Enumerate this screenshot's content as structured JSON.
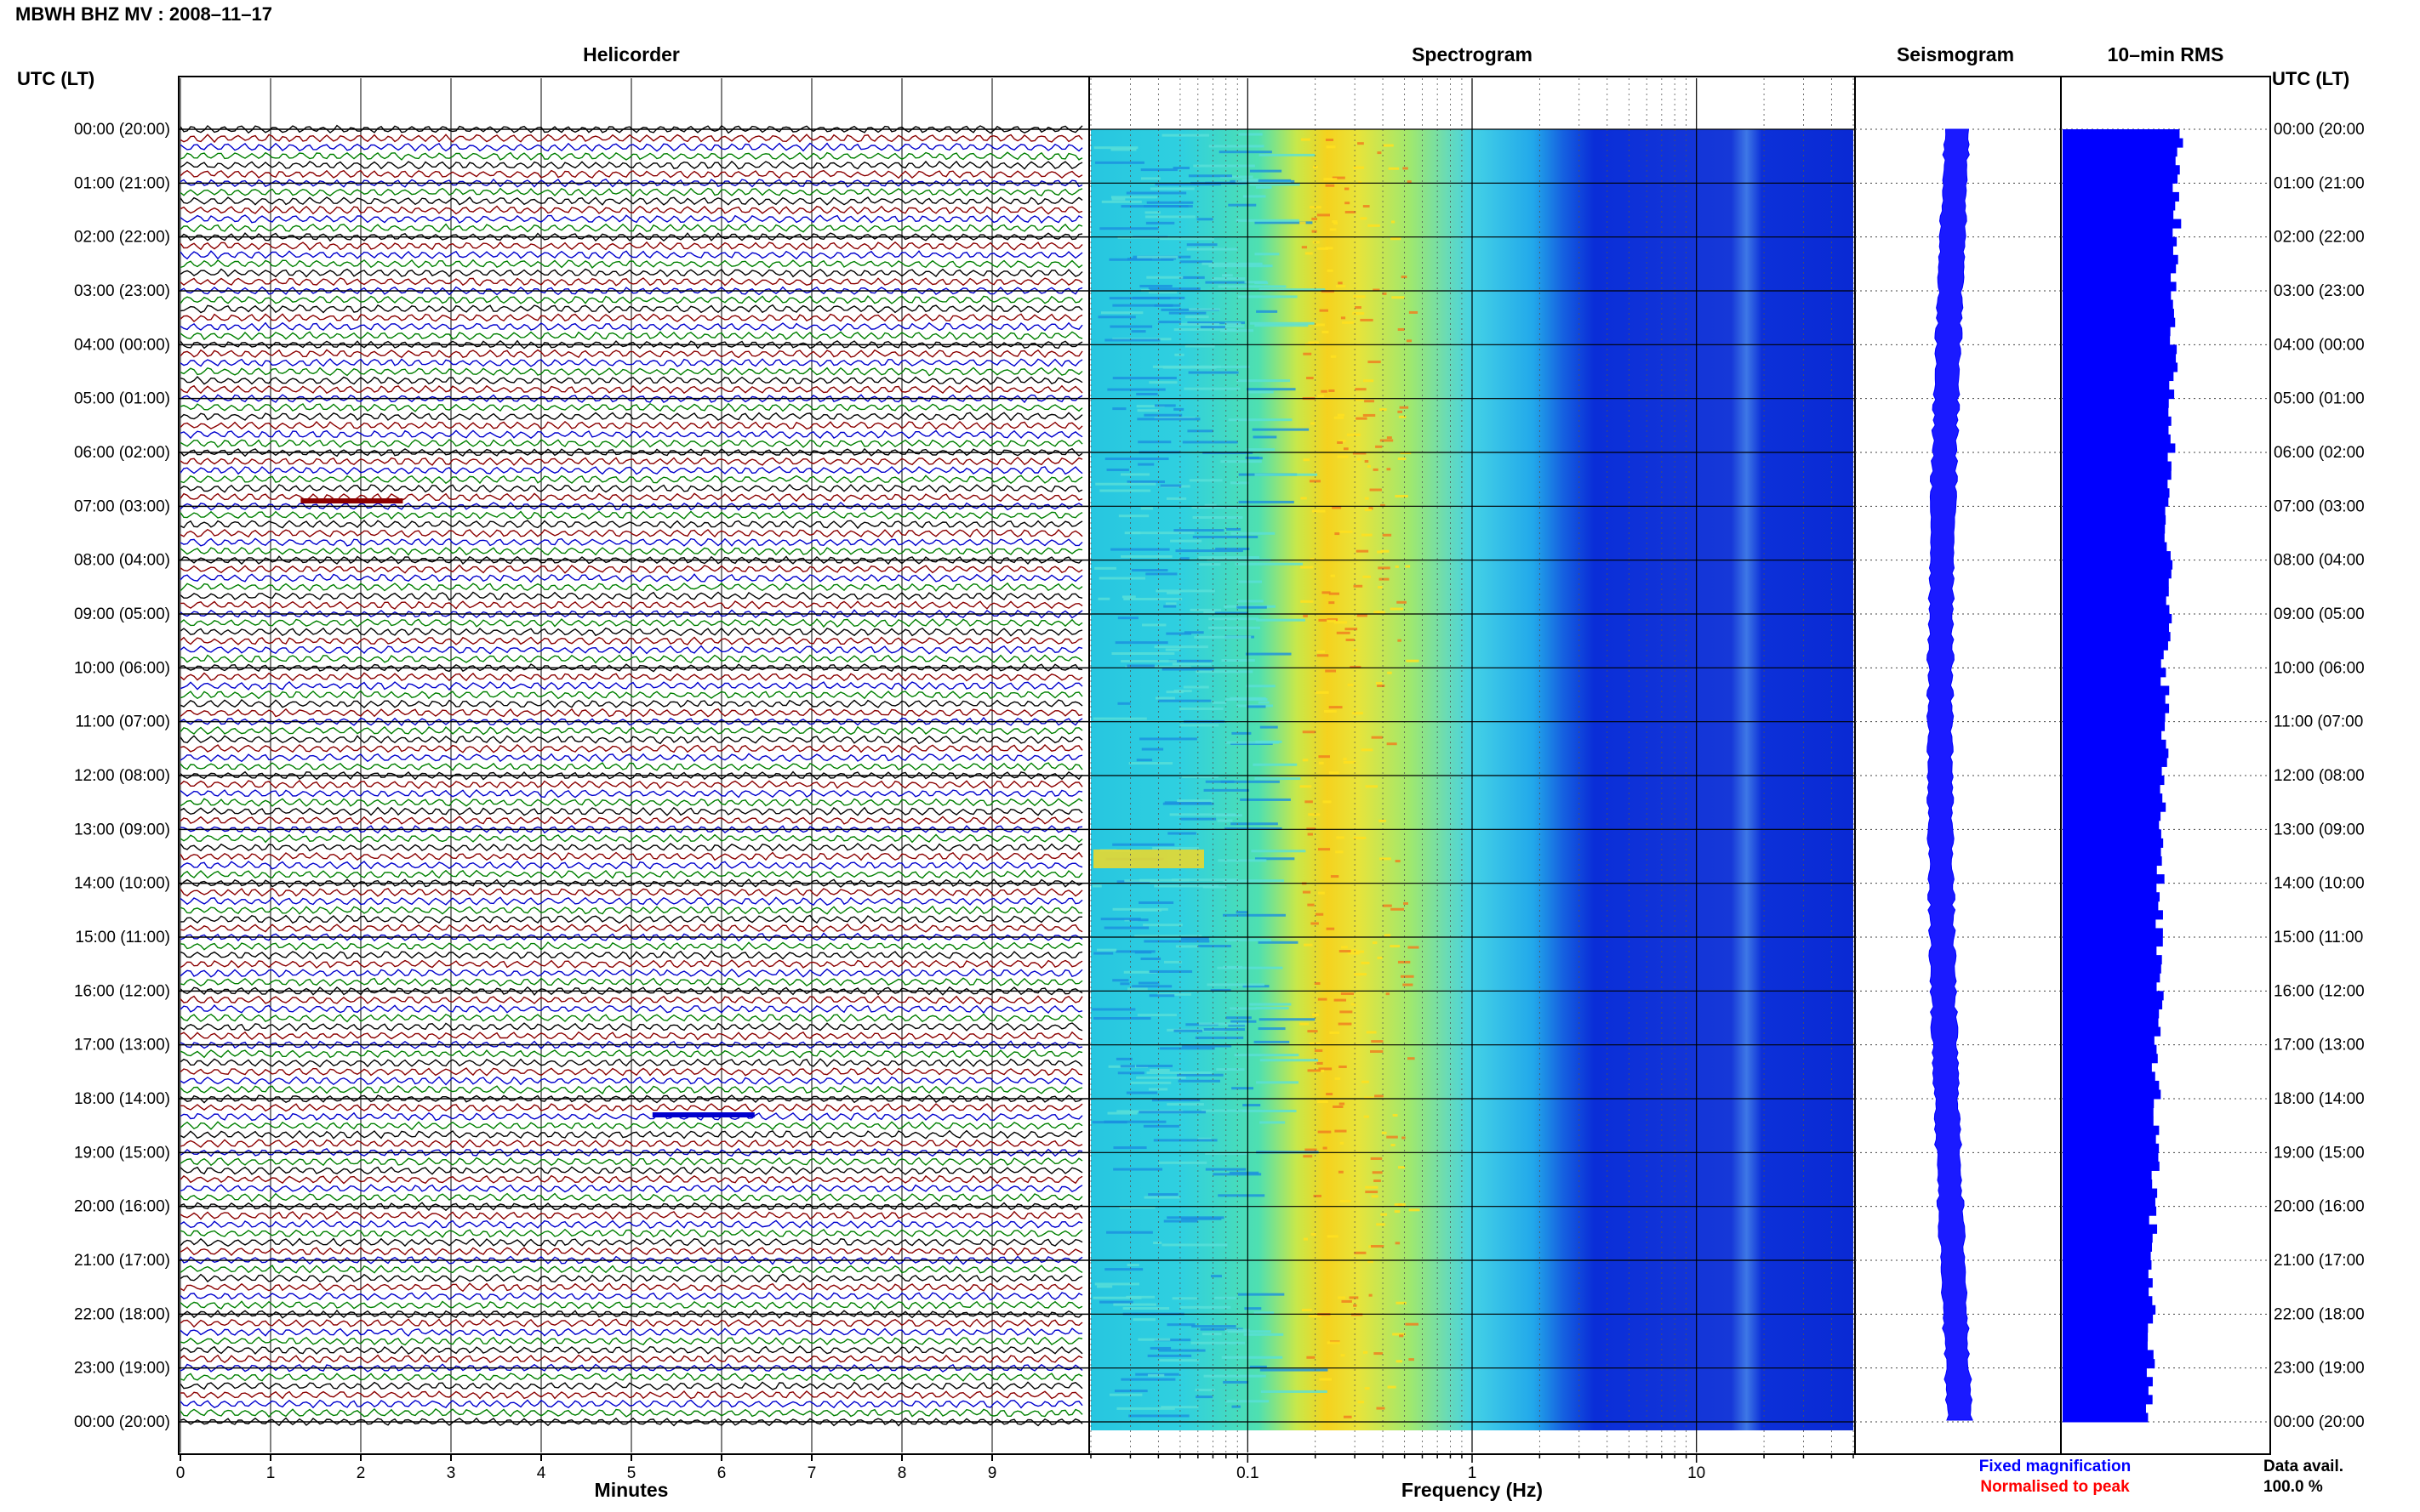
{
  "header": {
    "title": "MBWH BHZ MV : 2008–11–17",
    "utc_label": "UTC (LT)",
    "utc_label_right": "UTC (LT)"
  },
  "panels": {
    "helicorder": "Helicorder",
    "spectrogram": "Spectrogram",
    "seismogram": "Seismogram",
    "rms": "10–min RMS"
  },
  "axes": {
    "minutes_label": "Minutes",
    "frequency_label": "Frequency (Hz)"
  },
  "legend": {
    "fixed": "Fixed magnification",
    "normalised": "Normalised to peak",
    "fixed_color": "#0000ff",
    "normalised_color": "#ff0000"
  },
  "data_avail": {
    "label": "Data avail.",
    "value": "100.0 %"
  },
  "chart_data": [
    {
      "type": "line",
      "name": "helicorder",
      "title": "Helicorder",
      "xlabel": "Minutes",
      "x_ticks": [
        "0",
        "1",
        "2",
        "3",
        "4",
        "5",
        "6",
        "7",
        "8",
        "9"
      ],
      "xlim": [
        0,
        10
      ],
      "y_ticks_left": [
        "00:00 (20:00)",
        "01:00 (21:00)",
        "02:00 (22:00)",
        "03:00 (23:00)",
        "04:00 (00:00)",
        "05:00 (01:00)",
        "06:00 (02:00)",
        "07:00 (03:00)",
        "08:00 (04:00)",
        "09:00 (05:00)",
        "10:00 (06:00)",
        "11:00 (07:00)",
        "12:00 (08:00)",
        "13:00 (09:00)",
        "14:00 (10:00)",
        "15:00 (11:00)",
        "16:00 (12:00)",
        "17:00 (13:00)",
        "18:00 (14:00)",
        "19:00 (15:00)",
        "20:00 (16:00)",
        "21:00 (17:00)",
        "22:00 (18:00)",
        "23:00 (19:00)",
        "00:00 (20:00)"
      ],
      "lines_per_hour": 6,
      "trace_colors": [
        "#000000",
        "#8b0000",
        "#0000cd",
        "#008000"
      ],
      "notable_events": [
        {
          "hour": 6.9,
          "minute": 1.9,
          "color": "#8b0000"
        },
        {
          "hour": 18.3,
          "minute": 5.8,
          "color": "#0000cd"
        }
      ]
    },
    {
      "type": "heatmap",
      "name": "spectrogram",
      "title": "Spectrogram",
      "xlabel": "Frequency (Hz)",
      "x_scale": "log",
      "xlim": [
        0.02,
        50
      ],
      "x_ticks": [
        "0.1",
        "1",
        "10"
      ],
      "peak_frequency_hz": 0.2,
      "colormap": "jet"
    },
    {
      "type": "line",
      "name": "seismogram",
      "title": "Seismogram",
      "legend": [
        "Fixed magnification",
        "Normalised to peak"
      ]
    },
    {
      "type": "bar",
      "name": "rms",
      "title": "10–min RMS",
      "orientation": "horizontal",
      "categories_count": 144,
      "values_note": "relative"
    }
  ]
}
